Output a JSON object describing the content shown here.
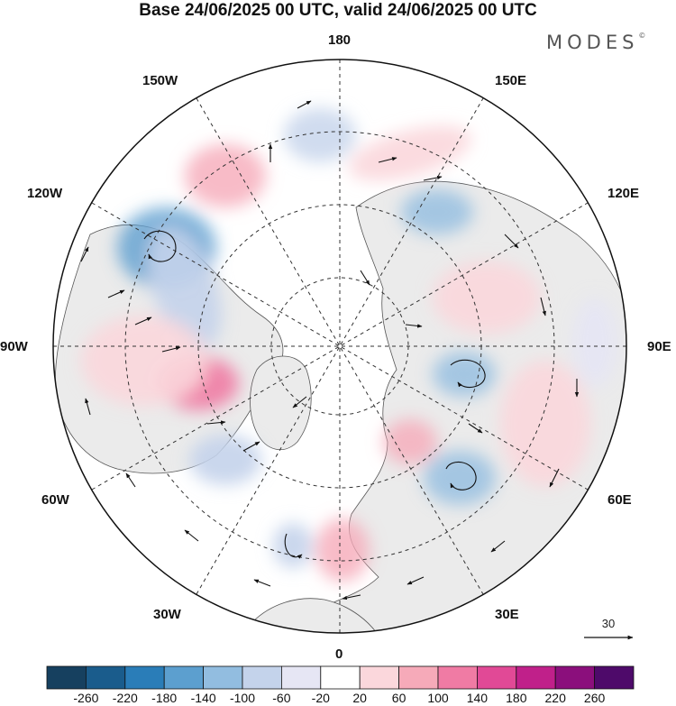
{
  "title": "Base 24/06/2025 00 UTC, valid 24/06/2025 00 UTC",
  "brand": {
    "name": "MODES",
    "mark": "©"
  },
  "longitude_labels": {
    "lon_180": "180",
    "lon_150e": "150E",
    "lon_120e": "120E",
    "lon_90e": "90E",
    "lon_60e": "60E",
    "lon_30e": "30E",
    "lon_0": "0",
    "lon_30w": "30W",
    "lon_60w": "60W",
    "lon_90w": "90W",
    "lon_120w": "120W",
    "lon_150w": "150W"
  },
  "reference_vector": {
    "label": "30"
  },
  "colorbar": {
    "ticks": [
      "-260",
      "-220",
      "-180",
      "-140",
      "-100",
      "-60",
      "-20",
      "20",
      "60",
      "100",
      "140",
      "180",
      "220",
      "260"
    ],
    "colors": [
      "#16405f",
      "#1a5c8c",
      "#2a7db8",
      "#5c9fcf",
      "#92bde0",
      "#c4d3eb",
      "#e6e6f4",
      "#ffffff",
      "#fbd7dc",
      "#f6aab9",
      "#f07ba4",
      "#e14996",
      "#c0208a",
      "#8b0f7c",
      "#4e0a6a"
    ],
    "land_color": "#ebebeb"
  }
}
